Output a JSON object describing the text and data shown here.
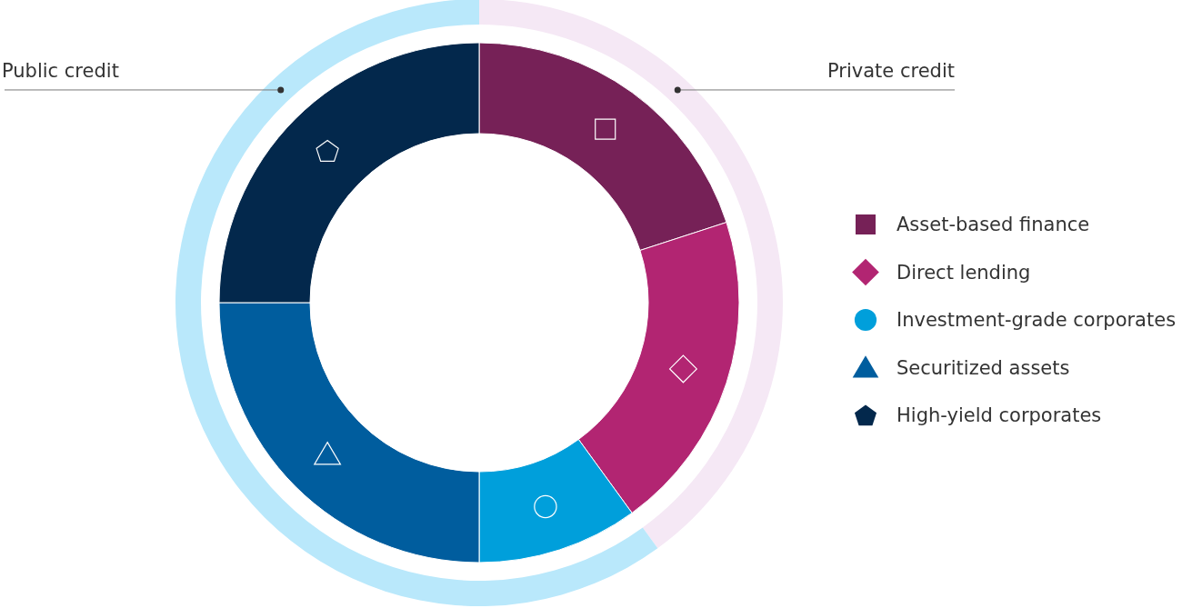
{
  "chart_data": [
    {
      "type": "donut",
      "categories": [
        "Private credit",
        "Public credit"
      ],
      "values": [
        40,
        60
      ],
      "colors": [
        "#f5e8f5",
        "#b9e8fb"
      ]
    },
    {
      "type": "donut",
      "categories": [
        "Asset-based finance",
        "Direct lending",
        "Investment-grade corporates",
        "Securitized assets",
        "High-yield corporates"
      ],
      "values": [
        20,
        20,
        10,
        25,
        25
      ],
      "colors": [
        "#762157",
        "#b22572",
        "#009fdb",
        "#005d9e",
        "#03284c"
      ],
      "legend": "right"
    }
  ]
}
